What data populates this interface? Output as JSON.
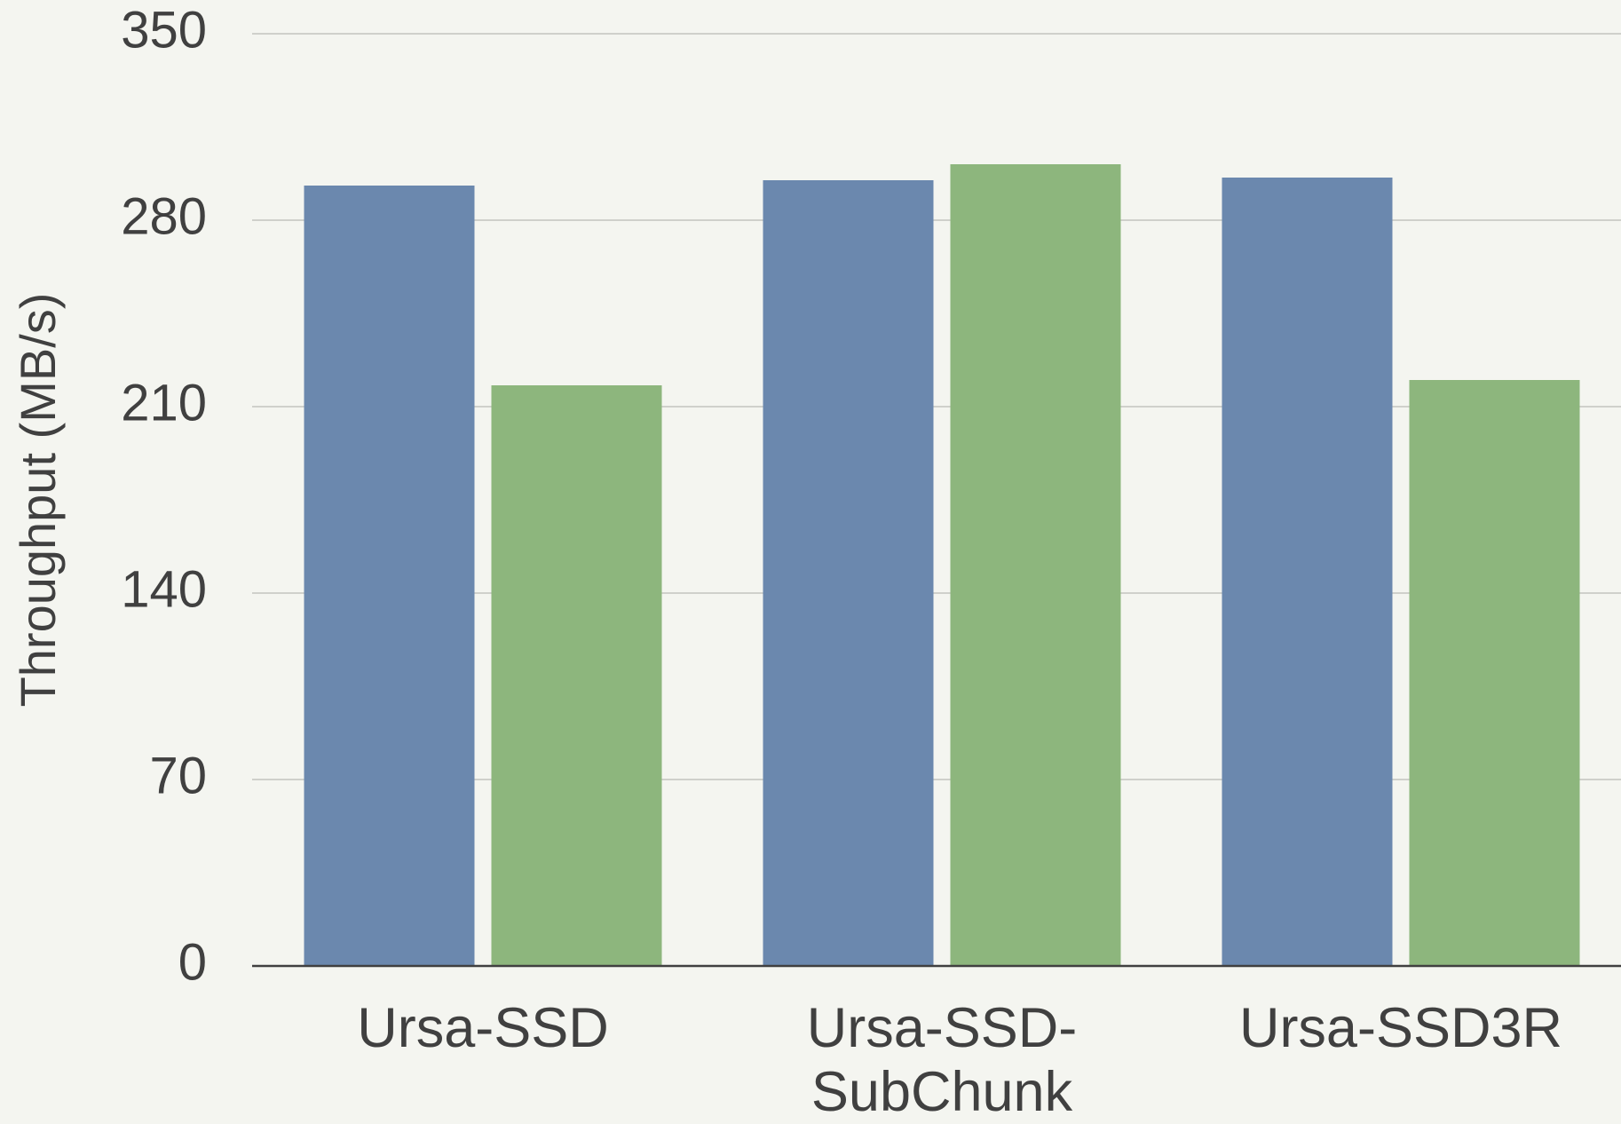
{
  "chart_data": {
    "type": "bar",
    "y_label": "Throughput (MB/s)",
    "categories": [
      "Ursa-SSD",
      "Ursa-SSD-SubChunk",
      "Ursa-SSD3R"
    ],
    "series": [
      {
        "color": "#6b88ae",
        "values": [
          293,
          295,
          296
        ]
      },
      {
        "color": "#8db67d",
        "values": [
          218,
          301,
          220
        ]
      }
    ],
    "ylim": [
      0,
      350
    ],
    "yticks": [
      0,
      70,
      140,
      210,
      280,
      350
    ],
    "grid": true
  }
}
